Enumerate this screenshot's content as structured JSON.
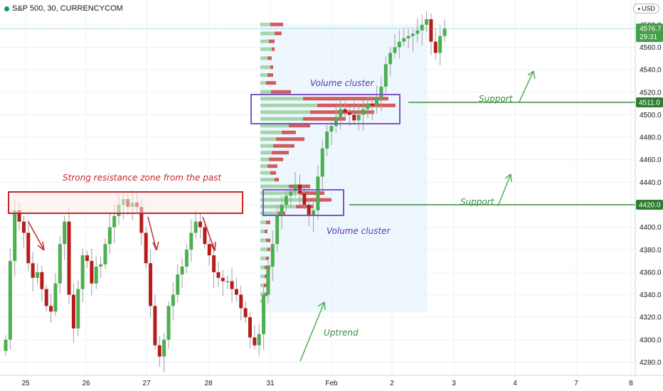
{
  "header": {
    "title": "S&P 500, 30, CURRENCYCOM",
    "currency": "USD",
    "chevron_icon": "chevron-down-icon"
  },
  "colors": {
    "up": "#4caf50",
    "down": "#b71c1c",
    "vp_up": "#66bb6a",
    "vp_down": "#c62828",
    "vp_area": "#e3f2fd",
    "box_purple": "#7e57c2",
    "resistance": "#c62828",
    "support": "#388e3c",
    "grid": "#eef0f3",
    "price_tag": "#2e7d32"
  },
  "chart_data": {
    "type": "candlestick",
    "title": "S&P 500, 30, CURRENCYCOM",
    "x_ticks": [
      "25",
      "26",
      "27",
      "28",
      "31",
      "Feb",
      "2",
      "3",
      "4",
      "7",
      "8"
    ],
    "y_ticks": [
      4280,
      4300,
      4320,
      4340,
      4360,
      4380,
      4400,
      4420,
      4440,
      4460,
      4480,
      4500,
      4520,
      4540,
      4560,
      4580
    ],
    "ylim": [
      4272,
      4595
    ],
    "last_price": "4576.7",
    "countdown": "29:31",
    "support_levels": [
      {
        "value": 4511.0,
        "label": "4511.0"
      },
      {
        "value": 4420.0,
        "label": "4420.0"
      }
    ],
    "closes": [
      4300,
      4370,
      4415,
      4405,
      4395,
      4368,
      4355,
      4360,
      4345,
      4330,
      4325,
      4350,
      4385,
      4405,
      4340,
      4310,
      4345,
      4375,
      4370,
      4350,
      4365,
      4367,
      4385,
      4400,
      4410,
      4420,
      4425,
      4418,
      4422,
      4418,
      4395,
      4368,
      4330,
      4295,
      4285,
      4300,
      4330,
      4340,
      4358,
      4365,
      4380,
      4395,
      4405,
      4400,
      4385,
      4375,
      4360,
      4355,
      4352,
      4352,
      4345,
      4340,
      4328,
      4320,
      4302,
      4295,
      4305,
      4340,
      4365,
      4385,
      4410,
      4420,
      4428,
      4432,
      4438,
      4430,
      4420,
      4410,
      4415,
      4445,
      4470,
      4485,
      4490,
      4498,
      4505,
      4502,
      4500,
      4495,
      4500,
      4505,
      4510,
      4508,
      4515,
      4525,
      4545,
      4555,
      4560,
      4565,
      4568,
      4570,
      4572,
      4575,
      4580,
      4585,
      4565,
      4555,
      4570,
      4576.7
    ],
    "annotations": {
      "resistance": "Strong resistance zone from the past",
      "volume_cluster_upper": "Volume cluster",
      "volume_cluster_lower": "Volume cluster",
      "support_upper": "Support",
      "support_lower": "Support",
      "uptrend": "Uptrend"
    }
  }
}
